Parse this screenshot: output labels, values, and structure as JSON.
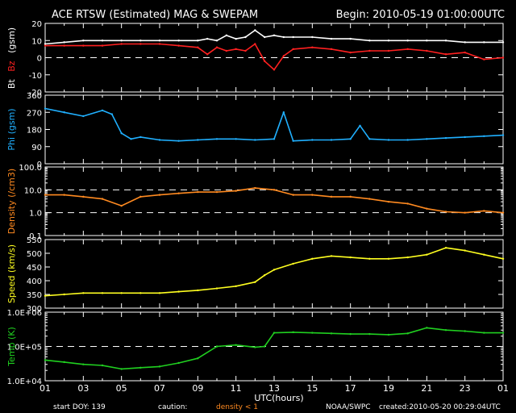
{
  "header": {
    "title": "ACE RTSW (Estimated) MAG & SWEPAM",
    "begin": "Begin: 2010-05-19 01:00:00UTC"
  },
  "footer": {
    "start_doy": "start DOY: 139",
    "caution": "caution:",
    "density_note": "density < 1",
    "source": "NOAA/SWPC",
    "created": "created:2010-05-20 00:29:04UTC"
  },
  "colors": {
    "bt": "#ffffff",
    "bz": "#ff2020",
    "phi": "#20b0ff",
    "density": "#ff8a20",
    "speed": "#ffff20",
    "temp": "#20d020",
    "caution": "#ff8a20"
  },
  "chart_data": [
    {
      "type": "line",
      "title": "ACE RTSW (Estimated) MAG & SWEPAM",
      "ylabel_parts": [
        "Bt",
        "Bz",
        "(gsm)"
      ],
      "ylim": [
        -20,
        20
      ],
      "yticks": [
        "20",
        "10",
        "0",
        "-10",
        "-20"
      ],
      "yticks_values": [
        20,
        10,
        0,
        -10,
        -20
      ],
      "reference_lines": [
        0
      ],
      "series": [
        {
          "name": "Bt",
          "color": "#ffffff",
          "x": [
            1,
            2,
            3,
            4,
            5,
            6,
            7,
            8,
            9,
            9.5,
            10,
            10.5,
            11,
            11.5,
            12,
            12.5,
            13,
            13.5,
            14,
            15,
            16,
            17,
            18,
            19,
            20,
            21,
            22,
            23,
            24,
            25
          ],
          "values": [
            8,
            9,
            10,
            10,
            10,
            10,
            10,
            10,
            10,
            11,
            10,
            13,
            11,
            12,
            16,
            12,
            13,
            12,
            12,
            12,
            11,
            11,
            10,
            10,
            10,
            10,
            10,
            9,
            9,
            9
          ]
        },
        {
          "name": "Bz",
          "color": "#ff2020",
          "x": [
            1,
            2,
            3,
            4,
            5,
            6,
            7,
            8,
            9,
            9.5,
            10,
            10.5,
            11,
            11.5,
            12,
            12.5,
            13,
            13.5,
            14,
            15,
            16,
            17,
            18,
            19,
            20,
            21,
            22,
            23,
            24,
            25
          ],
          "values": [
            7,
            7,
            7,
            7,
            8,
            8,
            8,
            7,
            6,
            2,
            6,
            4,
            5,
            4,
            8,
            -2,
            -7,
            1,
            5,
            6,
            5,
            3,
            4,
            4,
            5,
            4,
            2,
            3,
            -1,
            0
          ]
        }
      ]
    },
    {
      "type": "line",
      "ylabel": "Phi (gsm)",
      "ylim": [
        0,
        360
      ],
      "yticks": [
        "360",
        "270",
        "180",
        "90",
        "0"
      ],
      "yticks_values": [
        360,
        270,
        180,
        90,
        0
      ],
      "series": [
        {
          "name": "Phi",
          "color": "#20b0ff",
          "x": [
            1,
            2,
            3,
            4,
            4.5,
            5,
            5.5,
            6,
            7,
            8,
            9,
            10,
            11,
            12,
            13,
            13.5,
            14,
            15,
            16,
            17,
            17.5,
            18,
            19,
            20,
            21,
            22,
            23,
            24,
            25
          ],
          "values": [
            290,
            270,
            250,
            280,
            260,
            160,
            130,
            140,
            125,
            120,
            125,
            130,
            130,
            125,
            130,
            270,
            120,
            125,
            125,
            130,
            200,
            130,
            125,
            125,
            130,
            135,
            140,
            145,
            150
          ]
        }
      ]
    },
    {
      "type": "line",
      "ylabel": "Density (/cm3)",
      "yscale": "log",
      "ylim": [
        0.1,
        100
      ],
      "yticks": [
        "100.0",
        "10.0",
        "1.0",
        "0.1"
      ],
      "yticks_values": [
        100,
        10,
        1,
        0.1
      ],
      "reference_lines": [
        10,
        1
      ],
      "series": [
        {
          "name": "Density",
          "color": "#ff8a20",
          "x": [
            1,
            2,
            3,
            4,
            5,
            6,
            7,
            8,
            9,
            10,
            11,
            12,
            13,
            14,
            15,
            16,
            17,
            18,
            19,
            20,
            21,
            22,
            23,
            24,
            25
          ],
          "values": [
            6,
            6,
            5,
            4,
            2,
            5,
            6,
            7,
            8,
            8,
            9,
            12,
            10,
            6,
            6,
            5,
            5,
            4,
            3,
            2.5,
            1.5,
            1.1,
            1.0,
            1.2,
            1.0
          ]
        }
      ]
    },
    {
      "type": "line",
      "ylabel": "Speed (km/s)",
      "ylim": [
        300,
        550
      ],
      "yticks": [
        "550",
        "500",
        "450",
        "400",
        "350",
        "300"
      ],
      "yticks_values": [
        550,
        500,
        450,
        400,
        350,
        300
      ],
      "series": [
        {
          "name": "Speed",
          "color": "#ffff20",
          "x": [
            1,
            2,
            3,
            4,
            5,
            6,
            7,
            8,
            9,
            10,
            11,
            12,
            12.5,
            13,
            14,
            15,
            16,
            17,
            18,
            19,
            20,
            21,
            22,
            23,
            24,
            25
          ],
          "values": [
            345,
            350,
            355,
            355,
            355,
            355,
            355,
            360,
            365,
            372,
            380,
            395,
            420,
            440,
            462,
            480,
            490,
            485,
            480,
            480,
            485,
            495,
            520,
            510,
            495,
            480
          ]
        }
      ]
    },
    {
      "type": "line",
      "ylabel": "Temp (K)",
      "yscale": "log",
      "ylim": [
        10000,
        1000000
      ],
      "yticks": [
        "1.0E+06",
        "1.0E+05",
        "1.0E+04"
      ],
      "yticks_values": [
        1000000,
        100000,
        10000
      ],
      "reference_lines": [
        100000
      ],
      "series": [
        {
          "name": "Temp",
          "color": "#20d020",
          "x": [
            1,
            2,
            3,
            4,
            5,
            6,
            7,
            8,
            9,
            10,
            11,
            12,
            12.5,
            13,
            14,
            15,
            16,
            17,
            18,
            19,
            20,
            21,
            22,
            23,
            24,
            25
          ],
          "values": [
            40000,
            35000,
            30000,
            28000,
            22000,
            24000,
            26000,
            33000,
            45000,
            100000,
            110000,
            95000,
            100000,
            250000,
            260000,
            250000,
            240000,
            230000,
            230000,
            220000,
            240000,
            350000,
            300000,
            280000,
            250000,
            250000
          ]
        }
      ]
    }
  ],
  "xaxis": {
    "label": "UTC(hours)",
    "xlim": [
      1,
      25
    ],
    "ticks": [
      "01",
      "03",
      "05",
      "07",
      "09",
      "11",
      "13",
      "15",
      "17",
      "19",
      "21",
      "23",
      "01"
    ],
    "ticks_values": [
      1,
      3,
      5,
      7,
      9,
      11,
      13,
      15,
      17,
      19,
      21,
      23,
      25
    ]
  }
}
